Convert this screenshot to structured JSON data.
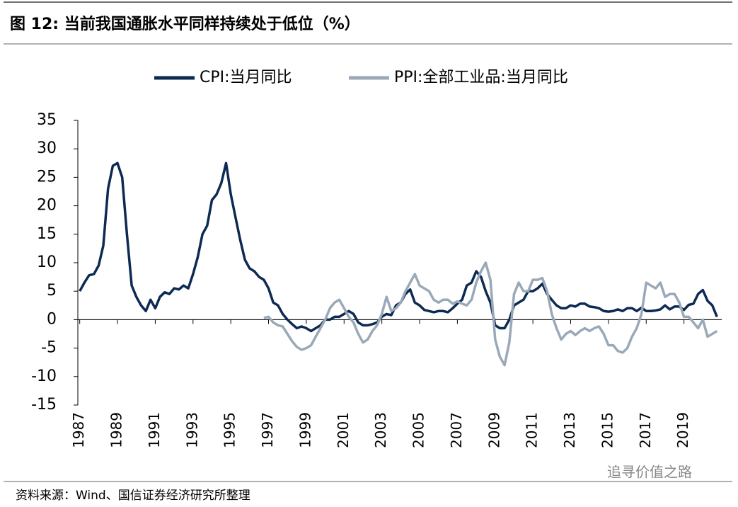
{
  "chart_data": {
    "type": "line",
    "title": "图 12: 当前我国通胀水平同样持续处于低位（%）",
    "x": [
      1987,
      1987.25,
      1987.5,
      1987.75,
      1988,
      1988.25,
      1988.5,
      1988.75,
      1989,
      1989.25,
      1989.5,
      1989.75,
      1990,
      1990.25,
      1990.5,
      1990.75,
      1991,
      1991.25,
      1991.5,
      1991.75,
      1992,
      1992.25,
      1992.5,
      1992.75,
      1993,
      1993.25,
      1993.5,
      1993.75,
      1994,
      1994.25,
      1994.5,
      1994.75,
      1995,
      1995.25,
      1995.5,
      1995.75,
      1996,
      1996.25,
      1996.5,
      1996.75,
      1997,
      1997.25,
      1997.5,
      1997.75,
      1998,
      1998.25,
      1998.5,
      1998.75,
      1999,
      1999.25,
      1999.5,
      1999.75,
      2000,
      2000.25,
      2000.5,
      2000.75,
      2001,
      2001.25,
      2001.5,
      2001.75,
      2002,
      2002.25,
      2002.5,
      2002.75,
      2003,
      2003.25,
      2003.5,
      2003.75,
      2004,
      2004.25,
      2004.5,
      2004.75,
      2005,
      2005.25,
      2005.5,
      2005.75,
      2006,
      2006.25,
      2006.5,
      2006.75,
      2007,
      2007.25,
      2007.5,
      2007.75,
      2008,
      2008.25,
      2008.5,
      2008.75,
      2009,
      2009.25,
      2009.5,
      2009.75,
      2010,
      2010.25,
      2010.5,
      2010.75,
      2011,
      2011.25,
      2011.5,
      2011.75,
      2012,
      2012.25,
      2012.5,
      2012.75,
      2013,
      2013.25,
      2013.5,
      2013.75,
      2014,
      2014.25,
      2014.5,
      2014.75,
      2015,
      2015.25,
      2015.5,
      2015.75,
      2016,
      2016.25,
      2016.5,
      2016.75,
      2017,
      2017.25,
      2017.5,
      2017.75,
      2018,
      2018.25,
      2018.5,
      2018.75,
      2019,
      2019.25,
      2019.5,
      2019.75,
      2020,
      2020.25,
      2020.5,
      2020.75
    ],
    "series": [
      {
        "name": "CPI:当月同比",
        "color": "#0d2a52",
        "values": [
          5,
          6.5,
          7.8,
          8,
          9.5,
          13,
          23,
          27,
          27.5,
          25,
          15,
          6,
          4,
          2.5,
          1.5,
          3.5,
          2,
          4,
          4.8,
          4.5,
          5.5,
          5.3,
          6,
          5.5,
          8,
          11,
          15,
          16.5,
          21,
          22,
          24,
          27.5,
          22,
          18,
          14,
          10.5,
          9,
          8.5,
          7.5,
          7,
          5.5,
          3,
          2.5,
          1,
          0,
          -0.8,
          -1.5,
          -1.2,
          -1.5,
          -2,
          -1.5,
          -1,
          0,
          0,
          0.5,
          0.5,
          1,
          1.5,
          1,
          -0.5,
          -1,
          -1,
          -0.8,
          -0.5,
          0.5,
          1,
          0.8,
          2.5,
          3,
          4.5,
          5.3,
          3,
          2.5,
          1.7,
          1.5,
          1.3,
          1.5,
          1.5,
          1.3,
          2,
          2.8,
          3.5,
          6,
          6.5,
          8.5,
          7.5,
          5,
          3,
          -1,
          -1.5,
          -1.5,
          0,
          2.5,
          3,
          3.5,
          5,
          5,
          5.5,
          6.3,
          4.5,
          3.5,
          2.5,
          2,
          2,
          2.5,
          2.3,
          2.8,
          2.8,
          2.3,
          2.2,
          2,
          1.5,
          1.4,
          1.5,
          1.8,
          1.5,
          2,
          2,
          1.5,
          2.1,
          1.5,
          1.5,
          1.6,
          1.8,
          2.5,
          1.8,
          2.3,
          2.3,
          1.7,
          2.6,
          2.8,
          4.5,
          5.2,
          3.3,
          2.5,
          0.5
        ]
      },
      {
        "name": "PPI:全部工业品:当月同比",
        "color": "#9aa9b8",
        "values": [
          null,
          null,
          null,
          null,
          null,
          null,
          null,
          null,
          null,
          null,
          null,
          null,
          null,
          null,
          null,
          null,
          null,
          null,
          null,
          null,
          null,
          null,
          null,
          null,
          null,
          null,
          null,
          null,
          null,
          null,
          null,
          null,
          null,
          null,
          null,
          null,
          null,
          null,
          null,
          0.3,
          0.5,
          -0.5,
          -1,
          -1.2,
          -2.5,
          -3.8,
          -4.8,
          -5.3,
          -5,
          -4.5,
          -3,
          -1.5,
          0,
          2,
          3,
          3.5,
          2,
          0.5,
          -0.5,
          -2.5,
          -4,
          -3.5,
          -2,
          -1,
          1,
          4,
          1.5,
          2,
          3,
          5,
          6.5,
          8,
          6,
          5.5,
          5,
          3.5,
          3,
          3.5,
          3.5,
          2.8,
          3.2,
          2.8,
          2.5,
          3.5,
          6.5,
          8.5,
          10,
          7,
          -3.5,
          -6.5,
          -8,
          -4,
          4.5,
          6.5,
          5,
          5,
          7,
          7,
          7.3,
          5,
          1,
          -1.5,
          -3.5,
          -2.5,
          -2,
          -2.7,
          -2,
          -1.5,
          -2,
          -1.5,
          -1.2,
          -2.5,
          -4.5,
          -4.5,
          -5.5,
          -5.8,
          -5,
          -3,
          -1.5,
          1,
          6.5,
          6,
          5.5,
          6.5,
          4,
          4.5,
          4.5,
          3,
          0.5,
          0.5,
          -0.5,
          -1.5,
          0,
          -3,
          -2.5,
          -2
        ]
      }
    ],
    "xlim": [
      1986.9,
      2021.0
    ],
    "xticks": [
      1987,
      1989,
      1991,
      1993,
      1995,
      1997,
      1999,
      2001,
      2003,
      2005,
      2007,
      2009,
      2011,
      2013,
      2015,
      2017,
      2019
    ],
    "ylim": [
      -15,
      35
    ],
    "yticks": [
      -15,
      -10,
      -5,
      0,
      5,
      10,
      15,
      20,
      25,
      30,
      35
    ],
    "legend": "top"
  },
  "footer": {
    "source": "资料来源：Wind、国信证券经济研究所整理",
    "watermark": "追寻价值之路"
  }
}
